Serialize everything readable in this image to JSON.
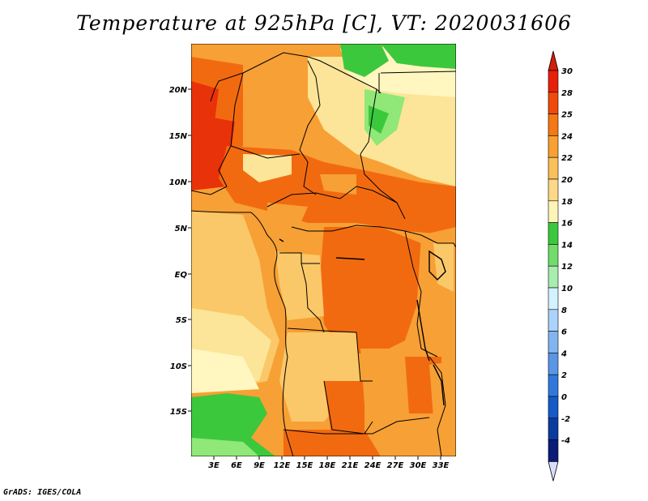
{
  "title": "Temperature at 925hPa [C], VT: 2020031606",
  "credit": "GrADS: IGES/COLA",
  "map": {
    "lat_labels": [
      "20N",
      "15N",
      "10N",
      "5N",
      "EQ",
      "5S",
      "10S",
      "15S"
    ],
    "lon_labels": [
      "3E",
      "6E",
      "9E",
      "12E",
      "15E",
      "18E",
      "21E",
      "24E",
      "27E",
      "30E",
      "33E"
    ],
    "fill_colors": {
      "very_hot": "#e8320a",
      "hot": "#f26a10",
      "warm": "#f7a035",
      "mild": "#fac868",
      "cool": "#fce598",
      "pale": "#fff6c0",
      "green_light": "#8fe878",
      "green": "#3cc83c",
      "green_pale": "#c8f0b4"
    }
  },
  "colorbar": {
    "labels": [
      "30",
      "28",
      "25",
      "24",
      "22",
      "20",
      "18",
      "16",
      "14",
      "12",
      "10",
      "8",
      "6",
      "4",
      "2",
      "0",
      "-2",
      "-4"
    ],
    "colors": [
      "#e8200a",
      "#f04a0a",
      "#f57814",
      "#f8a030",
      "#fac05a",
      "#fcd888",
      "#fff4b8",
      "#3cc83c",
      "#70dc6a",
      "#a8ecb0",
      "#d2f2ff",
      "#aad2fa",
      "#82b4f0",
      "#5a96e6",
      "#3278dc",
      "#145ac8",
      "#0a3ca0",
      "#0a1c78"
    ],
    "end_colors": {
      "top": "#d21e0a",
      "bottom": "#dadff8"
    }
  }
}
